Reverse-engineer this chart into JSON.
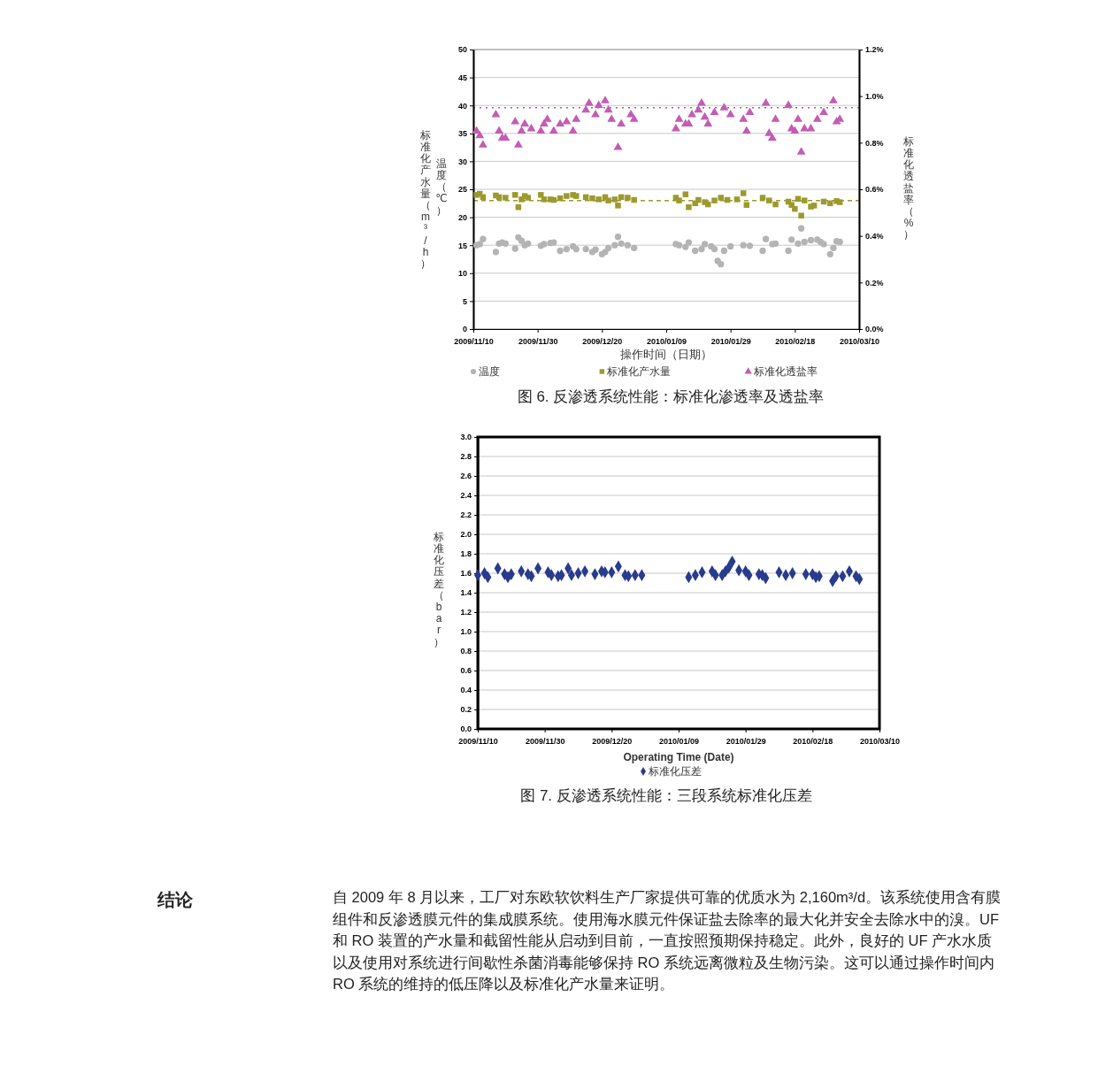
{
  "chart_data": [
    {
      "type": "scatter",
      "xlabel": "操作时间（日期）",
      "ylabel": "标准化产水量（m³/h）",
      "y2label": "标准化透盐率（%）",
      "annotations": [
        "温度（℃）",
        "图 6. 反渗透系统性能：标准化渗透率及透盐率"
      ],
      "xlim": [
        "2009-11-10",
        "2010-03-10"
      ],
      "xticks": [
        {
          "value": "2009-11-10",
          "label": "2009/11/10"
        },
        {
          "value": "2009-11-30",
          "label": "2009/11/30"
        },
        {
          "value": "2009-12-20",
          "label": "2009/12/20"
        },
        {
          "value": "2010-01-09",
          "label": "2010/01/09"
        },
        {
          "value": "2010-01-29",
          "label": "2010/01/29"
        },
        {
          "value": "2010-02-18",
          "label": "2010/02/18"
        },
        {
          "value": "2010-03-10",
          "label": "2010/03/10"
        }
      ],
      "ylim": [
        0,
        50
      ],
      "yticks": [
        0,
        5,
        10,
        15,
        20,
        25,
        30,
        35,
        40,
        45,
        50
      ],
      "y2lim": [
        0,
        1.2
      ],
      "y2ticks": [
        {
          "value": 0,
          "label": "0.0%"
        },
        {
          "value": 0.2,
          "label": "0.2%"
        },
        {
          "value": 0.4,
          "label": "0.4%"
        },
        {
          "value": 0.6,
          "label": "0.6%"
        },
        {
          "value": 0.8,
          "label": "0.8%"
        },
        {
          "value": 1.0,
          "label": "1.0%"
        },
        {
          "value": 1.2,
          "label": "1.2%"
        }
      ],
      "grid": "y",
      "legend": "bottom",
      "ref_lines": [
        {
          "axis": "y2",
          "value": 0.95,
          "color": "#a0609a",
          "line_style": "dotted"
        },
        {
          "axis": "y",
          "value": 23,
          "color": "#9c9a2e",
          "line_style": "dashed"
        }
      ],
      "series": [
        {
          "name": "温度",
          "color": "#b4b4b4",
          "marker": "circle",
          "x": [
            "2009-11-11",
            "2009-11-12",
            "2009-11-13",
            "2009-11-17",
            "2009-11-18",
            "2009-11-19",
            "2009-11-20",
            "2009-11-23",
            "2009-11-24",
            "2009-11-25",
            "2009-11-26",
            "2009-11-27",
            "2009-12-01",
            "2009-12-02",
            "2009-12-04",
            "2009-12-05",
            "2009-12-07",
            "2009-12-09",
            "2009-12-11",
            "2009-12-12",
            "2009-12-15",
            "2009-12-17",
            "2009-12-18",
            "2009-12-20",
            "2009-12-21",
            "2009-12-22",
            "2009-12-24",
            "2009-12-25",
            "2009-12-26",
            "2009-12-28",
            "2009-12-30",
            "2010-01-12",
            "2010-01-13",
            "2010-01-15",
            "2010-01-16",
            "2010-01-18",
            "2010-01-20",
            "2010-01-21",
            "2010-01-23",
            "2010-01-24",
            "2010-01-25",
            "2010-01-26",
            "2010-01-27",
            "2010-01-29",
            "2010-02-02",
            "2010-02-04",
            "2010-02-08",
            "2010-02-09",
            "2010-02-11",
            "2010-02-12",
            "2010-02-16",
            "2010-02-17",
            "2010-02-19",
            "2010-02-20",
            "2010-02-21",
            "2010-02-23",
            "2010-02-25",
            "2010-02-26",
            "2010-02-27",
            "2010-03-01",
            "2010-03-02",
            "2010-03-03",
            "2010-03-04"
          ],
          "values": [
            15,
            15.2,
            16.1,
            13.8,
            15.3,
            15.5,
            15.3,
            14.4,
            16.4,
            15.8,
            15,
            15.3,
            14.9,
            15.2,
            15.4,
            15.5,
            14,
            14.3,
            14.8,
            14.3,
            14.3,
            13.8,
            14.2,
            13.4,
            13.8,
            14.5,
            15,
            16.5,
            15.3,
            15,
            14.5,
            15.2,
            15,
            14.7,
            15.5,
            14,
            14.3,
            15.2,
            14.8,
            14.3,
            12.2,
            11.6,
            14,
            14.8,
            15,
            14.9,
            14,
            16.1,
            15.2,
            15.3,
            14,
            16,
            15.3,
            18,
            15.6,
            15.9,
            16,
            15.6,
            15.2,
            13.4,
            14.5,
            15.7,
            15.6
          ]
        },
        {
          "name": "标准化产水量",
          "color": "#9c9a2e",
          "marker": "square",
          "x": [
            "2009-11-11",
            "2009-11-12",
            "2009-11-13",
            "2009-11-17",
            "2009-11-18",
            "2009-11-20",
            "2009-11-23",
            "2009-11-24",
            "2009-11-25",
            "2009-11-26",
            "2009-11-27",
            "2009-12-01",
            "2009-12-02",
            "2009-12-04",
            "2009-12-05",
            "2009-12-07",
            "2009-12-09",
            "2009-12-11",
            "2009-12-12",
            "2009-12-15",
            "2009-12-17",
            "2009-12-19",
            "2009-12-21",
            "2009-12-22",
            "2009-12-24",
            "2009-12-25",
            "2009-12-26",
            "2009-12-28",
            "2009-12-30",
            "2010-01-12",
            "2010-01-13",
            "2010-01-15",
            "2010-01-16",
            "2010-01-18",
            "2010-01-19",
            "2010-01-21",
            "2010-01-22",
            "2010-01-24",
            "2010-01-26",
            "2010-01-28",
            "2010-01-31",
            "2010-02-02",
            "2010-02-03",
            "2010-02-08",
            "2010-02-10",
            "2010-02-12",
            "2010-02-16",
            "2010-02-17",
            "2010-02-18",
            "2010-02-19",
            "2010-02-20",
            "2010-02-21",
            "2010-02-23",
            "2010-02-24",
            "2010-02-27",
            "2010-03-01",
            "2010-03-03",
            "2010-03-04"
          ],
          "values": [
            24,
            24.2,
            23.6,
            23.9,
            23.6,
            23.5,
            24,
            21.8,
            23.2,
            23.8,
            23.5,
            24,
            23.2,
            23.2,
            23.1,
            23.4,
            23.8,
            24,
            23.8,
            23.6,
            23.4,
            23.2,
            23.6,
            23,
            23.2,
            22.1,
            23.6,
            23.5,
            23.1,
            23.5,
            23,
            24.1,
            21.8,
            22.5,
            23.1,
            22.7,
            22.3,
            23,
            23.5,
            23.1,
            23.2,
            24.3,
            22.2,
            23.5,
            23,
            22.3,
            22.8,
            22.2,
            21.5,
            23.3,
            20.3,
            23,
            21.9,
            22.1,
            22.8,
            22.5,
            22.9,
            22.7
          ]
        },
        {
          "name": "标准化透盐率",
          "color": "#c45cb5",
          "marker": "triangle",
          "axis": "y2",
          "x": [
            "2009-11-11",
            "2009-11-12",
            "2009-11-13",
            "2009-11-17",
            "2009-11-18",
            "2009-11-19",
            "2009-11-20",
            "2009-11-23",
            "2009-11-24",
            "2009-11-25",
            "2009-11-26",
            "2009-11-28",
            "2009-12-01",
            "2009-12-02",
            "2009-12-03",
            "2009-12-05",
            "2009-12-07",
            "2009-12-09",
            "2009-12-11",
            "2009-12-12",
            "2009-12-15",
            "2009-12-16",
            "2009-12-18",
            "2009-12-19",
            "2009-12-21",
            "2009-12-22",
            "2009-12-23",
            "2009-12-25",
            "2009-12-26",
            "2009-12-29",
            "2009-12-30",
            "2010-01-12",
            "2010-01-13",
            "2010-01-15",
            "2010-01-16",
            "2010-01-17",
            "2010-01-19",
            "2010-01-20",
            "2010-01-21",
            "2010-01-22",
            "2010-01-24",
            "2010-01-27",
            "2010-01-29",
            "2010-02-02",
            "2010-02-03",
            "2010-02-04",
            "2010-02-09",
            "2010-02-10",
            "2010-02-11",
            "2010-02-12",
            "2010-02-16",
            "2010-02-17",
            "2010-02-18",
            "2010-02-19",
            "2010-02-20",
            "2010-02-21",
            "2010-02-23",
            "2010-02-25",
            "2010-02-27",
            "2010-03-02",
            "2010-03-03",
            "2010-03-04"
          ],
          "values": [
            0.85,
            0.83,
            0.79,
            0.92,
            0.85,
            0.82,
            0.82,
            0.89,
            0.79,
            0.85,
            0.88,
            0.86,
            0.85,
            0.88,
            0.9,
            0.85,
            0.88,
            0.89,
            0.85,
            0.9,
            0.94,
            0.97,
            0.92,
            0.96,
            0.98,
            0.94,
            0.9,
            0.78,
            0.88,
            0.92,
            0.9,
            0.86,
            0.9,
            0.88,
            0.88,
            0.92,
            0.94,
            0.97,
            0.91,
            0.88,
            0.93,
            0.95,
            0.92,
            0.9,
            0.85,
            0.93,
            0.97,
            0.84,
            0.82,
            0.9,
            0.96,
            0.86,
            0.85,
            0.9,
            0.76,
            0.86,
            0.86,
            0.9,
            0.93,
            0.98,
            0.89,
            0.9
          ]
        }
      ]
    },
    {
      "type": "scatter",
      "xlabel": "Operating Time (Date)",
      "ylabel": "标准化压差（bar）",
      "annotations": [
        "图 7. 反渗透系统性能：三段系统标准化压差",
        "结论",
        "自 2009 年 8 月以来，工厂对东欧软饮料生产厂家提供可靠的优质水为 2,160m³/d。该系统使用含有膜组件和反渗透膜元件的集成膜系统。使用海水膜元件保证盐去除率的最大化并安全去除水中的溴。UF 和 RO 装置的产水量和截留性能从启动到目前，一直按照预期保持稳定。此外，良好的 UF 产水水质以及使用对系统进行间歇性杀菌消毒能够保持 RO 系统远离微粒及生物污染。这可以通过操作时间内 RO 系统的维持的低压降以及标准化产水量来证明。"
      ],
      "xlim": [
        "2009-11-10",
        "2010-03-10"
      ],
      "xticks": [
        {
          "value": "2009-11-10",
          "label": "2009/11/10"
        },
        {
          "value": "2009-11-30",
          "label": "2009/11/30"
        },
        {
          "value": "2009-12-20",
          "label": "2009/12/20"
        },
        {
          "value": "2010-01-09",
          "label": "2010/01/09"
        },
        {
          "value": "2010-01-29",
          "label": "2010/01/29"
        },
        {
          "value": "2010-02-18",
          "label": "2010/02/18"
        },
        {
          "value": "2010-03-10",
          "label": "2010/03/10"
        }
      ],
      "ylim": [
        0,
        3
      ],
      "yticks": [
        {
          "value": 0,
          "label": "0.0"
        },
        {
          "value": 0.2,
          "label": "0.2"
        },
        {
          "value": 0.4,
          "label": "0.4"
        },
        {
          "value": 0.6,
          "label": "0.6"
        },
        {
          "value": 0.8,
          "label": "0.8"
        },
        {
          "value": 1.0,
          "label": "1.0"
        },
        {
          "value": 1.2,
          "label": "1.2"
        },
        {
          "value": 1.4,
          "label": "1.4"
        },
        {
          "value": 1.6,
          "label": "1.6"
        },
        {
          "value": 1.8,
          "label": "1.8"
        },
        {
          "value": 2.0,
          "label": "2.0"
        },
        {
          "value": 2.2,
          "label": "2.2"
        },
        {
          "value": 2.4,
          "label": "2.4"
        },
        {
          "value": 2.6,
          "label": "2.6"
        },
        {
          "value": 2.8,
          "label": "2.8"
        },
        {
          "value": 3.0,
          "label": "3.0"
        }
      ],
      "grid": "y",
      "legend": "bottom",
      "series": [
        {
          "name": "标准化压差",
          "color": "#283b8c",
          "marker": "diamond",
          "x": [
            "2009-11-10",
            "2009-11-12",
            "2009-11-13",
            "2009-11-16",
            "2009-11-18",
            "2009-11-19",
            "2009-11-20",
            "2009-11-23",
            "2009-11-25",
            "2009-11-26",
            "2009-11-28",
            "2009-12-01",
            "2009-12-02",
            "2009-12-04",
            "2009-12-05",
            "2009-12-07",
            "2009-12-08",
            "2009-12-10",
            "2009-12-12",
            "2009-12-15",
            "2009-12-17",
            "2009-12-18",
            "2009-12-20",
            "2009-12-22",
            "2009-12-24",
            "2009-12-25",
            "2009-12-27",
            "2009-12-29",
            "2010-01-12",
            "2010-01-14",
            "2010-01-16",
            "2010-01-19",
            "2010-01-20",
            "2010-01-22",
            "2010-01-23",
            "2010-01-24",
            "2010-01-25",
            "2010-01-27",
            "2010-01-29",
            "2010-01-30",
            "2010-02-02",
            "2010-02-03",
            "2010-02-04",
            "2010-02-08",
            "2010-02-10",
            "2010-02-12",
            "2010-02-16",
            "2010-02-18",
            "2010-02-19",
            "2010-02-20",
            "2010-02-24",
            "2010-02-25",
            "2010-02-27",
            "2010-03-01",
            "2010-03-03",
            "2010-03-04"
          ],
          "values": [
            1.58,
            1.6,
            1.56,
            1.65,
            1.59,
            1.56,
            1.59,
            1.62,
            1.59,
            1.57,
            1.65,
            1.61,
            1.58,
            1.57,
            1.58,
            1.65,
            1.58,
            1.6,
            1.62,
            1.59,
            1.62,
            1.61,
            1.61,
            1.67,
            1.58,
            1.57,
            1.58,
            1.58,
            1.56,
            1.58,
            1.61,
            1.62,
            1.58,
            1.58,
            1.62,
            1.66,
            1.72,
            1.63,
            1.62,
            1.58,
            1.59,
            1.58,
            1.55,
            1.61,
            1.58,
            1.6,
            1.59,
            1.59,
            1.56,
            1.57,
            1.52,
            1.57,
            1.57,
            1.62,
            1.57,
            1.54
          ]
        }
      ]
    }
  ]
}
